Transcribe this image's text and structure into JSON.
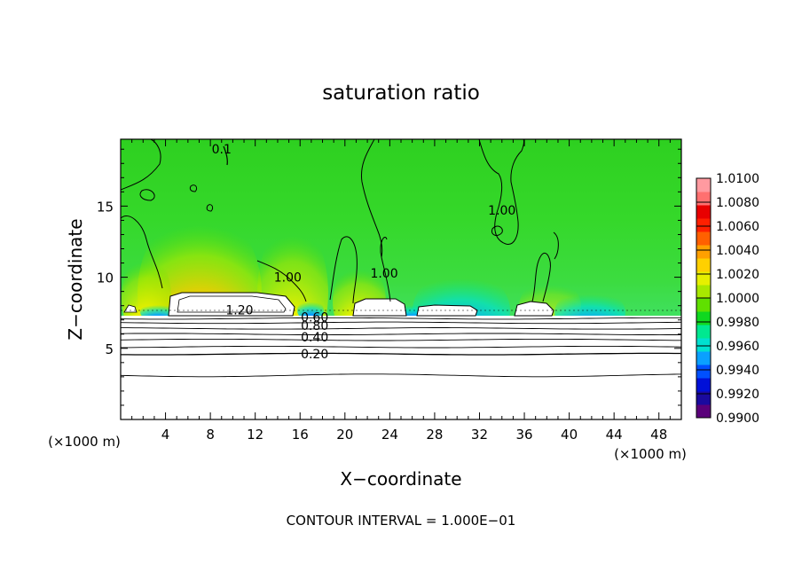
{
  "chart_data": {
    "type": "heatmap",
    "title": "saturation ratio",
    "xlabel": "X−coordinate",
    "ylabel": "Z−coordinate",
    "x_unit": "(×1000 m)",
    "y_unit": "(×1000 m)",
    "xlim": [
      0,
      50
    ],
    "ylim": [
      0,
      19.7
    ],
    "x_ticks": [
      4,
      8,
      12,
      16,
      20,
      24,
      28,
      32,
      36,
      40,
      44,
      48
    ],
    "y_ticks": [
      5,
      10,
      15
    ],
    "footer": "CONTOUR INTERVAL = 1.000E−01",
    "colorbar": {
      "min": 0.99,
      "max": 1.01,
      "tick_labels": [
        "1.0100",
        "1.0080",
        "1.0060",
        "1.0040",
        "1.0020",
        "1.0000",
        "0.9980",
        "0.9960",
        "0.9940",
        "0.9920",
        "0.9900"
      ],
      "colors": [
        "#5a007a",
        "#1a0a9e",
        "#0010d8",
        "#0050ff",
        "#0aa0ff",
        "#00e0d0",
        "#00e890",
        "#10d820",
        "#60e000",
        "#a8e800",
        "#e6f000",
        "#ffd000",
        "#ffa000",
        "#ff6000",
        "#ff2000",
        "#e80000",
        "#ff7070",
        "#ff9aa0"
      ]
    },
    "contour_labels": [
      {
        "text": "1.20",
        "x": 10.6,
        "z": 7.7
      },
      {
        "text": "1.00",
        "x": 14.9,
        "z": 10.0
      },
      {
        "text": "1.00",
        "x": 23.5,
        "z": 10.3
      },
      {
        "text": "1.00",
        "x": 34.0,
        "z": 14.7
      },
      {
        "text": "0.60",
        "x": 17.3,
        "z": 7.2
      },
      {
        "text": "0.80",
        "x": 17.3,
        "z": 6.6
      },
      {
        "text": "0.40",
        "x": 17.3,
        "z": 5.8
      },
      {
        "text": "0.20",
        "x": 17.3,
        "z": 4.6
      },
      {
        "text": "0.1",
        "x": 9.0,
        "z": 19.0
      }
    ],
    "isolines_z": [
      3.1,
      4.6,
      5.1,
      5.6,
      6.0,
      6.4,
      6.8,
      7.1
    ]
  }
}
